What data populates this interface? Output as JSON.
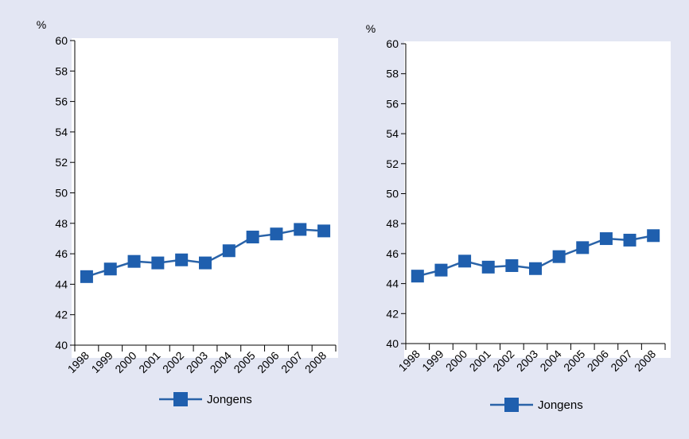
{
  "chart_data": [
    {
      "type": "line",
      "title": "",
      "xlabel": "",
      "ylabel": "%",
      "ylim": [
        40,
        60
      ],
      "yticks": [
        40,
        42,
        44,
        46,
        48,
        50,
        52,
        54,
        56,
        58,
        60
      ],
      "categories": [
        "1998",
        "1999",
        "2000",
        "2001",
        "2002",
        "2003",
        "2004",
        "2005",
        "2006",
        "2007",
        "2008"
      ],
      "series": [
        {
          "name": "Jongens",
          "values": [
            44.5,
            45.0,
            45.5,
            45.4,
            45.6,
            45.4,
            46.2,
            47.1,
            47.3,
            47.6,
            47.5
          ]
        }
      ],
      "legend": "bottom",
      "grid": false,
      "color": "#1f5fae"
    },
    {
      "type": "line",
      "title": "",
      "xlabel": "",
      "ylabel": "%",
      "ylim": [
        40,
        60
      ],
      "yticks": [
        40,
        42,
        44,
        46,
        48,
        50,
        52,
        54,
        56,
        58,
        60
      ],
      "categories": [
        "1998",
        "1999",
        "2000",
        "2001",
        "2002",
        "2003",
        "2004",
        "2005",
        "2006",
        "2007",
        "2008"
      ],
      "series": [
        {
          "name": "Jongens",
          "values": [
            44.5,
            44.9,
            45.5,
            45.1,
            45.2,
            45.0,
            45.8,
            46.4,
            47.0,
            46.9,
            47.2
          ]
        }
      ],
      "legend": "bottom",
      "grid": false,
      "color": "#1f5fae"
    }
  ]
}
